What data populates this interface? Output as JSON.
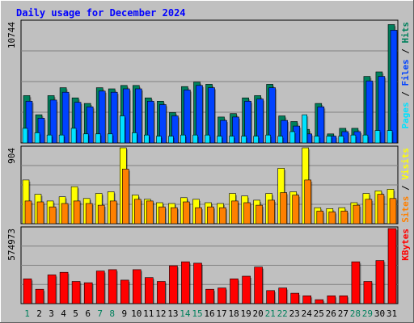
{
  "chart_data": {
    "type": "bar",
    "title": "Daily usage for December 2024",
    "categories": [
      "1",
      "2",
      "3",
      "4",
      "5",
      "6",
      "7",
      "8",
      "9",
      "10",
      "11",
      "12",
      "13",
      "14",
      "15",
      "16",
      "17",
      "18",
      "19",
      "20",
      "21",
      "22",
      "23",
      "24",
      "25",
      "26",
      "27",
      "28",
      "29",
      "30",
      "31"
    ],
    "weekend_days": [
      "1",
      "7",
      "8",
      "14",
      "15",
      "21",
      "22",
      "28",
      "29"
    ],
    "panels": [
      {
        "id": "hits",
        "max_label": "10744",
        "ymax": 10744,
        "legend": [
          "Pages",
          "Files",
          "Hits"
        ],
        "series": [
          {
            "name": "Hits",
            "values": [
              4200,
              2500,
              4200,
              4900,
              4000,
              3500,
              4900,
              4800,
              5100,
              5100,
              4000,
              3700,
              2700,
              5000,
              5400,
              5200,
              2300,
              2600,
              4000,
              4200,
              5200,
              2400,
              1900,
              1200,
              3500,
              800,
              1300,
              1300,
              5900,
              6300,
              10500
            ]
          },
          {
            "name": "Files",
            "values": [
              3700,
              2200,
              3800,
              4500,
              3600,
              3200,
              4600,
              4500,
              4800,
              4800,
              3700,
              3400,
              2400,
              4700,
              5100,
              4900,
              2000,
              2300,
              3700,
              3900,
              4900,
              2000,
              1500,
              800,
              3200,
              600,
              1000,
              1000,
              5500,
              5900,
              10000
            ]
          },
          {
            "name": "Pages",
            "values": [
              1300,
              900,
              700,
              700,
              1300,
              800,
              800,
              800,
              2400,
              900,
              700,
              600,
              600,
              700,
              700,
              700,
              600,
              600,
              600,
              600,
              700,
              600,
              1000,
              2500,
              600,
              600,
              600,
              700,
              700,
              1100,
              1100
            ]
          }
        ],
        "colors": {
          "Hits": "#00805c",
          "Files": "#0042ff",
          "Pages": "#00e2ff"
        }
      },
      {
        "id": "visits",
        "max_label": "904",
        "ymax": 904,
        "legend": [
          "Sites",
          "Visits"
        ],
        "series": [
          {
            "name": "Visits",
            "values": [
              520,
              350,
              270,
              320,
              440,
              300,
              360,
              380,
              904,
              340,
              290,
              250,
              240,
              310,
              290,
              250,
              240,
              360,
              330,
              280,
              360,
              660,
              380,
              904,
              190,
              180,
              190,
              250,
              360,
              390,
              410
            ]
          },
          {
            "name": "Sites",
            "values": [
              270,
              260,
              200,
              240,
              270,
              240,
              220,
              270,
              650,
              290,
              270,
              200,
              190,
              260,
              190,
              200,
              190,
              270,
              250,
              220,
              280,
              370,
              340,
              520,
              150,
              140,
              150,
              220,
              290,
              350,
              300
            ]
          }
        ],
        "colors": {
          "Visits": "#ffff00",
          "Sites": "#ff8000"
        }
      },
      {
        "id": "kbytes",
        "max_label": "574973",
        "ymax": 574973,
        "legend": [
          "KBytes"
        ],
        "series": [
          {
            "name": "KBytes",
            "values": [
              190000,
              110000,
              220000,
              240000,
              170000,
              160000,
              250000,
              260000,
              180000,
              260000,
              200000,
              170000,
              290000,
              320000,
              310000,
              110000,
              120000,
              190000,
              210000,
              280000,
              100000,
              120000,
              80000,
              60000,
              30000,
              60000,
              60000,
              320000,
              170000,
              330000,
              574973
            ]
          }
        ],
        "colors": {
          "KBytes": "#ff0000"
        }
      }
    ]
  }
}
